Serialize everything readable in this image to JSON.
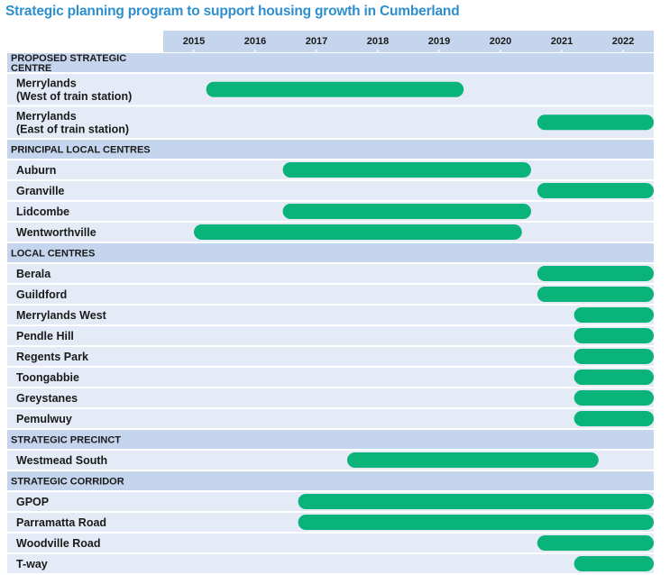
{
  "title": "Strategic planning program to support housing growth in Cumberland",
  "colors": {
    "bar": "#0ab37a",
    "row_background": "#e4ebf7",
    "section_background": "#c6d5ee",
    "header_background": "#c6d5ee",
    "title": "#2e8fce"
  },
  "chart_data": {
    "type": "gantt",
    "title": "Strategic planning program to support housing growth in Cumberland",
    "x_ticks": [
      "2015",
      "2016",
      "2017",
      "2018",
      "2019",
      "2020",
      "2021",
      "2022"
    ],
    "xlim": [
      2014.5,
      2022.5
    ],
    "rows": [
      {
        "kind": "section",
        "lines": [
          "PROPOSED STRATEGIC",
          "CENTRE"
        ]
      },
      {
        "kind": "item",
        "lines": [
          "Merrylands",
          "(West of train station)"
        ],
        "start": 2015.2,
        "end": 2019.4
      },
      {
        "kind": "item",
        "lines": [
          "Merrylands",
          "(East of train station)"
        ],
        "start": 2020.6,
        "end": 2022.5
      },
      {
        "kind": "section",
        "lines": [
          "PRINCIPAL LOCAL CENTRES"
        ]
      },
      {
        "kind": "item",
        "lines": [
          "Auburn"
        ],
        "start": 2016.45,
        "end": 2020.5
      },
      {
        "kind": "item",
        "lines": [
          "Granville"
        ],
        "start": 2020.6,
        "end": 2022.5
      },
      {
        "kind": "item",
        "lines": [
          "Lidcombe"
        ],
        "start": 2016.45,
        "end": 2020.5
      },
      {
        "kind": "item",
        "lines": [
          "Wentworthville"
        ],
        "start": 2015.0,
        "end": 2020.35
      },
      {
        "kind": "section",
        "lines": [
          "LOCAL CENTRES"
        ]
      },
      {
        "kind": "item",
        "lines": [
          "Berala"
        ],
        "start": 2020.6,
        "end": 2022.5
      },
      {
        "kind": "item",
        "lines": [
          "Guildford"
        ],
        "start": 2020.6,
        "end": 2022.5
      },
      {
        "kind": "item",
        "lines": [
          "Merrylands West"
        ],
        "start": 2021.2,
        "end": 2022.5
      },
      {
        "kind": "item",
        "lines": [
          "Pendle Hill"
        ],
        "start": 2021.2,
        "end": 2022.5
      },
      {
        "kind": "item",
        "lines": [
          "Regents Park"
        ],
        "start": 2021.2,
        "end": 2022.5
      },
      {
        "kind": "item",
        "lines": [
          "Toongabbie"
        ],
        "start": 2021.2,
        "end": 2022.5
      },
      {
        "kind": "item",
        "lines": [
          "Greystanes"
        ],
        "start": 2021.2,
        "end": 2022.5
      },
      {
        "kind": "item",
        "lines": [
          "Pemulwuy"
        ],
        "start": 2021.2,
        "end": 2022.5
      },
      {
        "kind": "section",
        "lines": [
          "STRATEGIC PRECINCT"
        ]
      },
      {
        "kind": "item",
        "lines": [
          "Westmead South"
        ],
        "start": 2017.5,
        "end": 2021.6
      },
      {
        "kind": "section",
        "lines": [
          "STRATEGIC CORRIDOR"
        ]
      },
      {
        "kind": "item",
        "lines": [
          "GPOP"
        ],
        "start": 2016.7,
        "end": 2022.5
      },
      {
        "kind": "item",
        "lines": [
          "Parramatta Road"
        ],
        "start": 2016.7,
        "end": 2022.5
      },
      {
        "kind": "item",
        "lines": [
          "Woodville Road"
        ],
        "start": 2020.6,
        "end": 2022.5
      },
      {
        "kind": "item",
        "lines": [
          "T-way"
        ],
        "start": 2021.2,
        "end": 2022.5
      }
    ]
  }
}
